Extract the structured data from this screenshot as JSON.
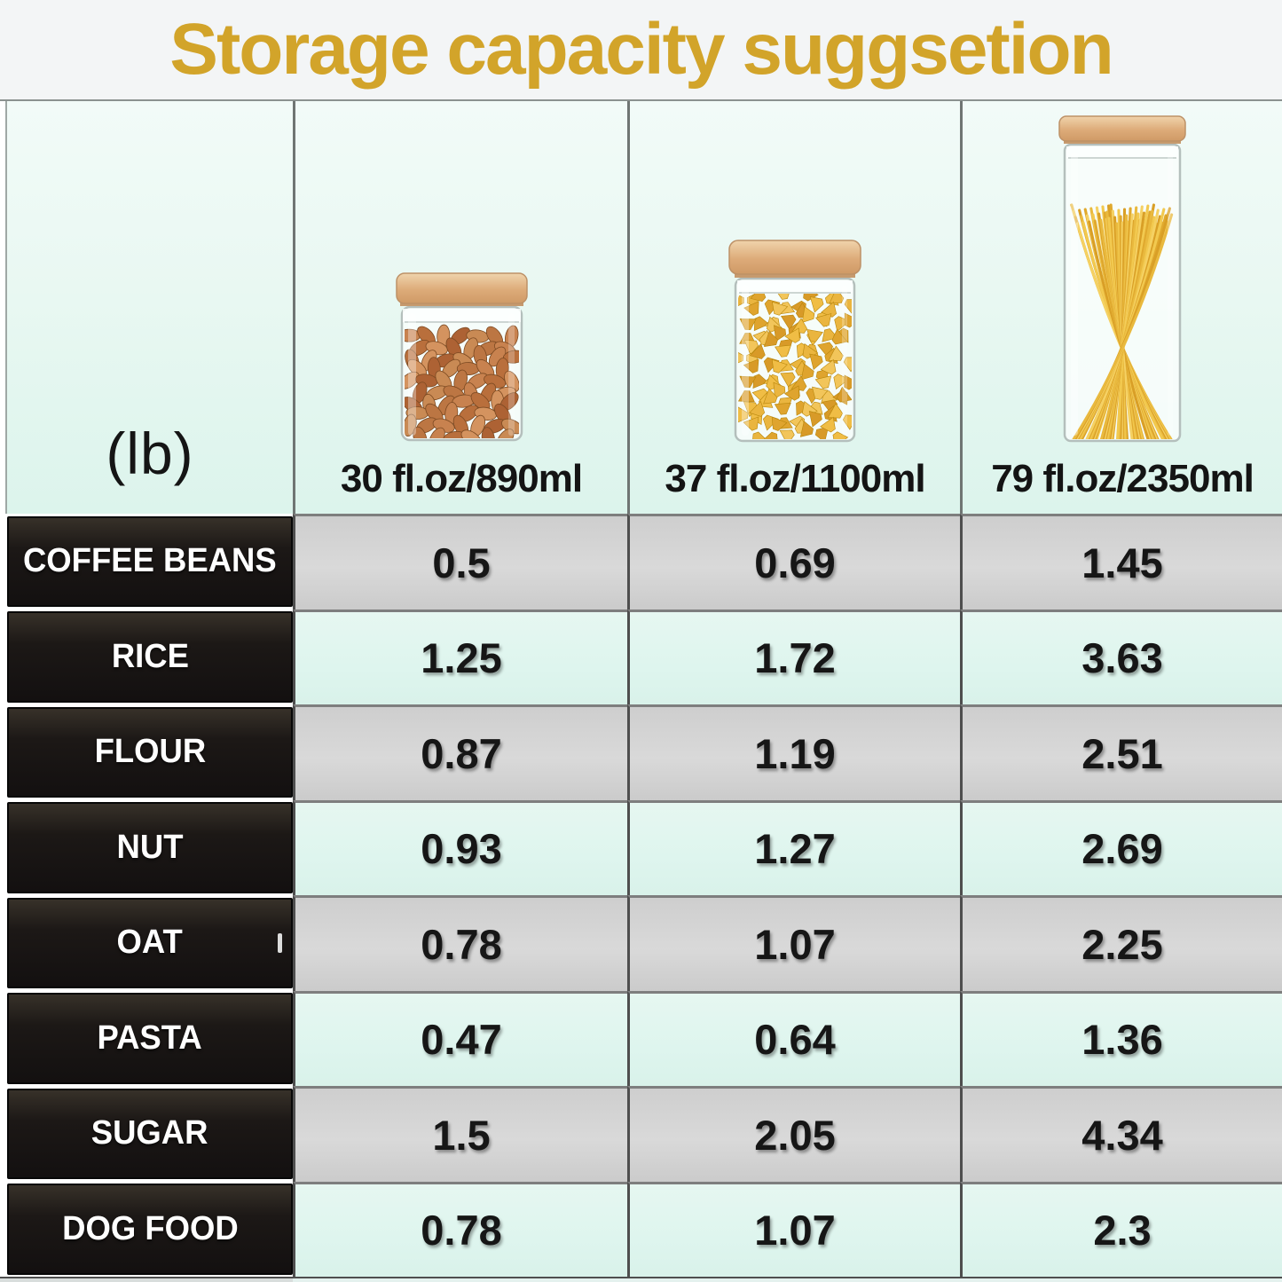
{
  "title": "Storage capacity suggsetion",
  "unit_label": "(lb)",
  "columns": [
    {
      "capacity": "30 fl.oz/890ml",
      "icon": "almond-jar-icon"
    },
    {
      "capacity": "37 fl.oz/1100ml",
      "icon": "farfalle-jar-icon"
    },
    {
      "capacity": "79 fl.oz/2350ml",
      "icon": "spaghetti-jar-icon"
    }
  ],
  "rows": [
    {
      "label": "COFFEE BEANS",
      "values": [
        "0.5",
        "0.69",
        "1.45"
      ]
    },
    {
      "label": "RICE",
      "values": [
        "1.25",
        "1.72",
        "3.63"
      ]
    },
    {
      "label": "FLOUR",
      "values": [
        "0.87",
        "1.19",
        "2.51"
      ]
    },
    {
      "label": "NUT",
      "values": [
        "0.93",
        "1.27",
        "2.69"
      ]
    },
    {
      "label": "OAT",
      "values": [
        "0.78",
        "1.07",
        "2.25"
      ]
    },
    {
      "label": "PASTA",
      "values": [
        "0.47",
        "0.64",
        "1.36"
      ]
    },
    {
      "label": "SUGAR",
      "values": [
        "1.5",
        "2.05",
        "4.34"
      ]
    },
    {
      "label": "DOG FOOD",
      "values": [
        "0.78",
        "1.07",
        "2.3"
      ]
    }
  ],
  "colors": {
    "title_gold": "#d2a42a",
    "mint_cell": "#def5ee",
    "gray_cell": "#d2d2d2",
    "label_cell_black": "#1b1715",
    "label_text": "#ffffff",
    "value_text": "#161616",
    "grid_border_dark": "#4e4e4e",
    "grid_border_light": "#7e7e7e",
    "wood_lid": "#ddab79",
    "almond_brown": "#c8824f",
    "pasta_gold": "#eab53f"
  },
  "chart_data": {
    "type": "table",
    "title": "Storage capacity suggsetion",
    "unit": "lb",
    "columns": [
      "30 fl.oz/890ml",
      "37 fl.oz/1100ml",
      "79 fl.oz/2350ml"
    ],
    "rows": [
      "COFFEE BEANS",
      "RICE",
      "FLOUR",
      "NUT",
      "OAT",
      "PASTA",
      "SUGAR",
      "DOG FOOD"
    ],
    "values": [
      [
        0.5,
        0.69,
        1.45
      ],
      [
        1.25,
        1.72,
        3.63
      ],
      [
        0.87,
        1.19,
        2.51
      ],
      [
        0.93,
        1.27,
        2.69
      ],
      [
        0.78,
        1.07,
        2.25
      ],
      [
        0.47,
        0.64,
        1.36
      ],
      [
        1.5,
        2.05,
        4.34
      ],
      [
        0.78,
        1.07,
        2.3
      ]
    ],
    "legend_position": "none",
    "grid": true
  }
}
